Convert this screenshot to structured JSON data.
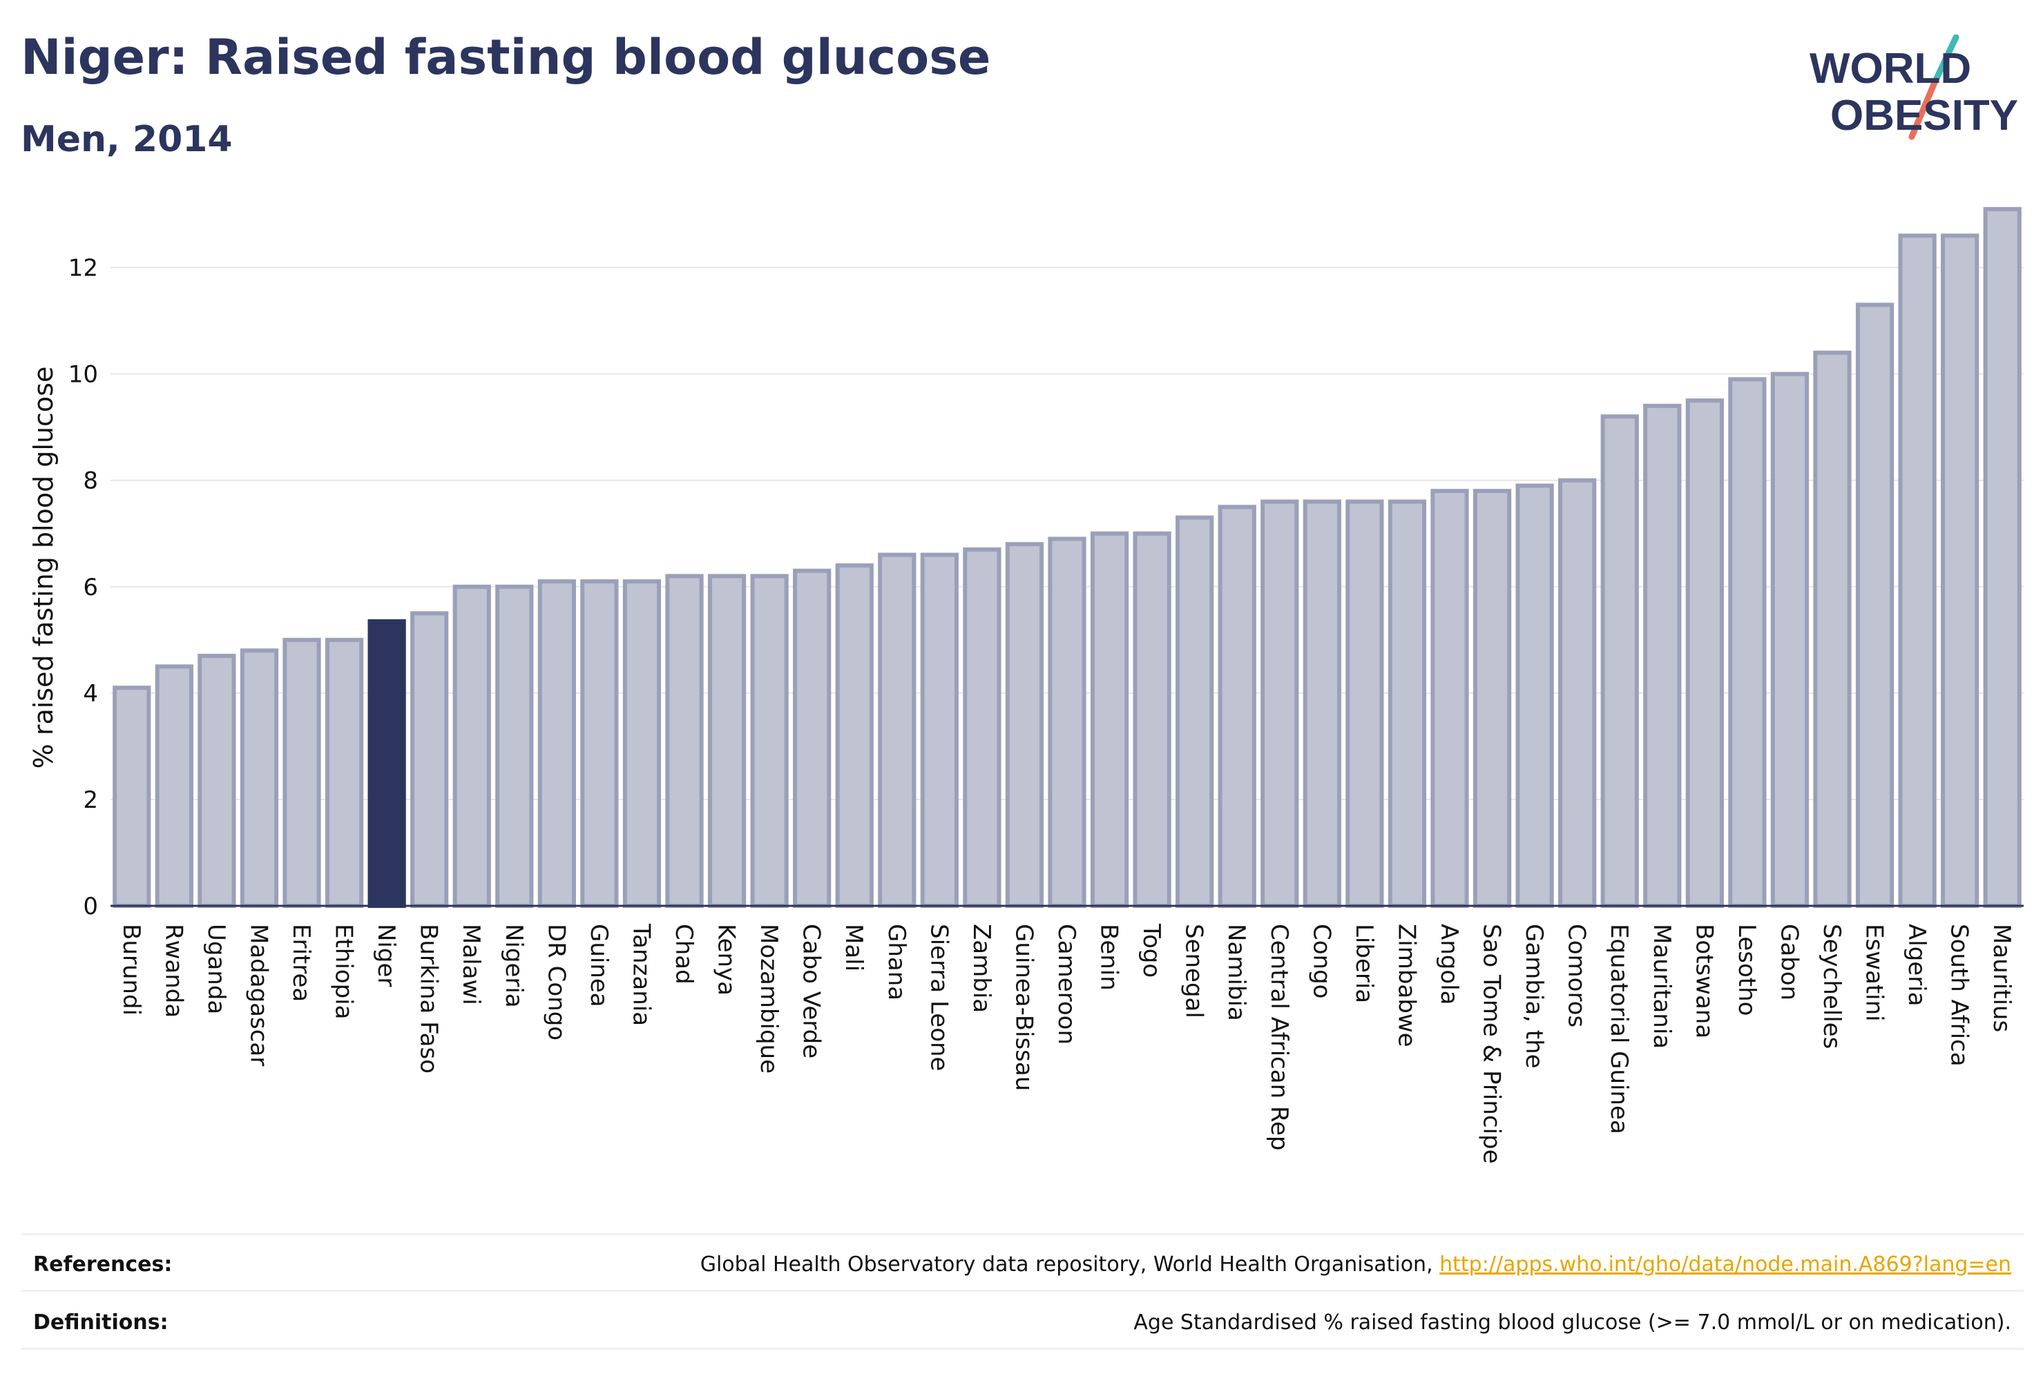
{
  "header": {
    "title": "Niger: Raised fasting blood glucose",
    "subtitle": "Men, 2014"
  },
  "logo": {
    "line1": "WORLD",
    "line2": "OBESITY",
    "text_color": "#2c355e",
    "slash_top": "#3fb9b3",
    "slash_bottom": "#e8705a"
  },
  "footer": {
    "references_label": "References:",
    "references_text": "Global Health Observatory data repository, World Health Organisation, ",
    "references_link": "http://apps.who.int/gho/data/node.main.A869?lang=en",
    "definitions_label": "Definitions:",
    "definitions_text": "Age Standardised % raised fasting blood glucose (>= 7.0 mmol/L or on medication)."
  },
  "colors": {
    "bar": "#bfc3d2",
    "bar_border": "#9aa0b8",
    "highlight": "#2c355e",
    "grid": "#e6e6e6",
    "link": "#e8a500"
  },
  "chart_data": {
    "type": "bar",
    "ylabel": "% raised fasting blood glucose",
    "xlabel": "",
    "ylim": [
      0,
      13.5
    ],
    "yticks": [
      0,
      2,
      4,
      6,
      8,
      10,
      12
    ],
    "grid": true,
    "highlight": "Niger",
    "categories": [
      "Burundi",
      "Rwanda",
      "Uganda",
      "Madagascar",
      "Eritrea",
      "Ethiopia",
      "Niger",
      "Burkina Faso",
      "Malawi",
      "Nigeria",
      "DR Congo",
      "Guinea",
      "Tanzania",
      "Chad",
      "Kenya",
      "Mozambique",
      "Cabo Verde",
      "Mali",
      "Ghana",
      "Sierra Leone",
      "Zambia",
      "Guinea-Bissau",
      "Cameroon",
      "Benin",
      "Togo",
      "Senegal",
      "Namibia",
      "Central African Rep",
      "Congo",
      "Liberia",
      "Zimbabwe",
      "Angola",
      "Sao Tome & Principe",
      "Gambia, the",
      "Comoros",
      "Equatorial Guinea",
      "Mauritania",
      "Botswana",
      "Lesotho",
      "Gabon",
      "Seychelles",
      "Eswatini",
      "Algeria",
      "South Africa",
      "Mauritius"
    ],
    "values": [
      4.1,
      4.5,
      4.7,
      4.8,
      5.0,
      5.0,
      5.35,
      5.5,
      6.0,
      6.0,
      6.1,
      6.1,
      6.1,
      6.2,
      6.2,
      6.2,
      6.3,
      6.4,
      6.6,
      6.6,
      6.7,
      6.8,
      6.9,
      7.0,
      7.0,
      7.3,
      7.5,
      7.6,
      7.6,
      7.6,
      7.6,
      7.8,
      7.8,
      7.9,
      8.0,
      9.2,
      9.4,
      9.5,
      9.9,
      10.0,
      10.4,
      11.3,
      12.6,
      12.6,
      13.1
    ]
  }
}
